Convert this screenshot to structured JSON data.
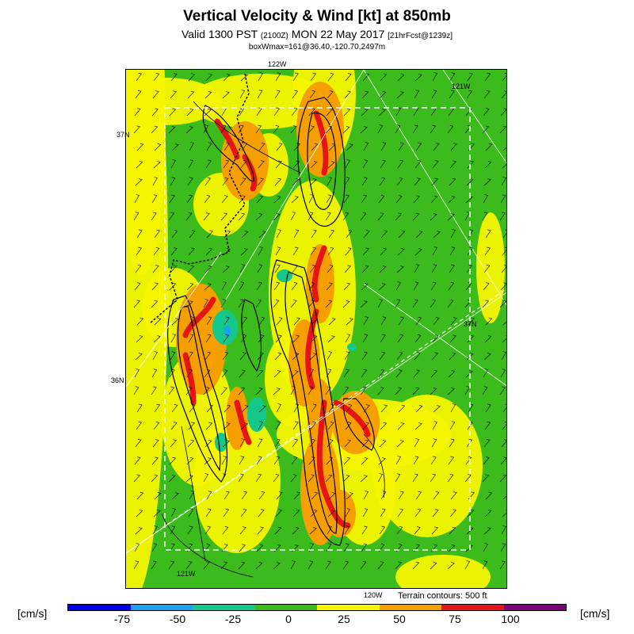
{
  "header": {
    "title": "Vertical Velocity & Wind [kt] at 850mb",
    "valid_prefix": "Valid 1300 PST",
    "valid_utc": "(2100Z)",
    "valid_date": "MON 22 May 2017",
    "forecast_info": "[21hrFcst@1239z]",
    "box_max": "boxWmax=161@36.40,-120.70,2497m"
  },
  "map_labels": {
    "lon_122_top": "122W",
    "lon_121_top": "121W",
    "lat_37_left": "37N",
    "lat_36_left": "36N",
    "lat_37_right": "37N",
    "lon_121_bottom": "121W",
    "lon_120_bottom": "120W"
  },
  "terrain_note": "Terrain contours: 500 ft",
  "colorbar": {
    "unit_left": "[cm/s]",
    "unit_right": "[cm/s]",
    "tick_labels": [
      "-75",
      "-50",
      "-25",
      "0",
      "25",
      "50",
      "75",
      "100"
    ],
    "colors": [
      "#0000e6",
      "#1ea0f0",
      "#14c88c",
      "#3cbc1c",
      "#f5f500",
      "#f5a000",
      "#e61414",
      "#780078"
    ]
  },
  "map_colors": {
    "background": "#3cbc1c",
    "positive_weak": "#f5f500",
    "positive_moderate": "#f5a000",
    "positive_strong": "#e61414",
    "negative_weak": "#14c88c",
    "negative_moderate": "#1ea0f0"
  }
}
